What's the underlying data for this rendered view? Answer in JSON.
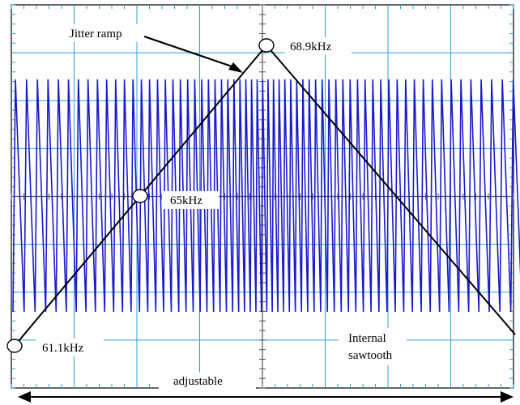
{
  "labels": {
    "jitter_ramp": "Jitter ramp",
    "peak_freq": "68.9kHz",
    "mid_freq": "65kHz",
    "low_freq": "61.1kHz",
    "internal_sawtooth_line1": "Internal",
    "internal_sawtooth_line2": "sawtooth",
    "adjustable": "adjustable"
  },
  "colors": {
    "grid": "#2b9fd8",
    "waveform": "#1a1acc",
    "ramp": "#000000",
    "background": "#ffffff"
  },
  "grid": {
    "major_divisions_x": 8,
    "major_divisions_y": 8,
    "minor_ticks_per_division": 5
  }
}
